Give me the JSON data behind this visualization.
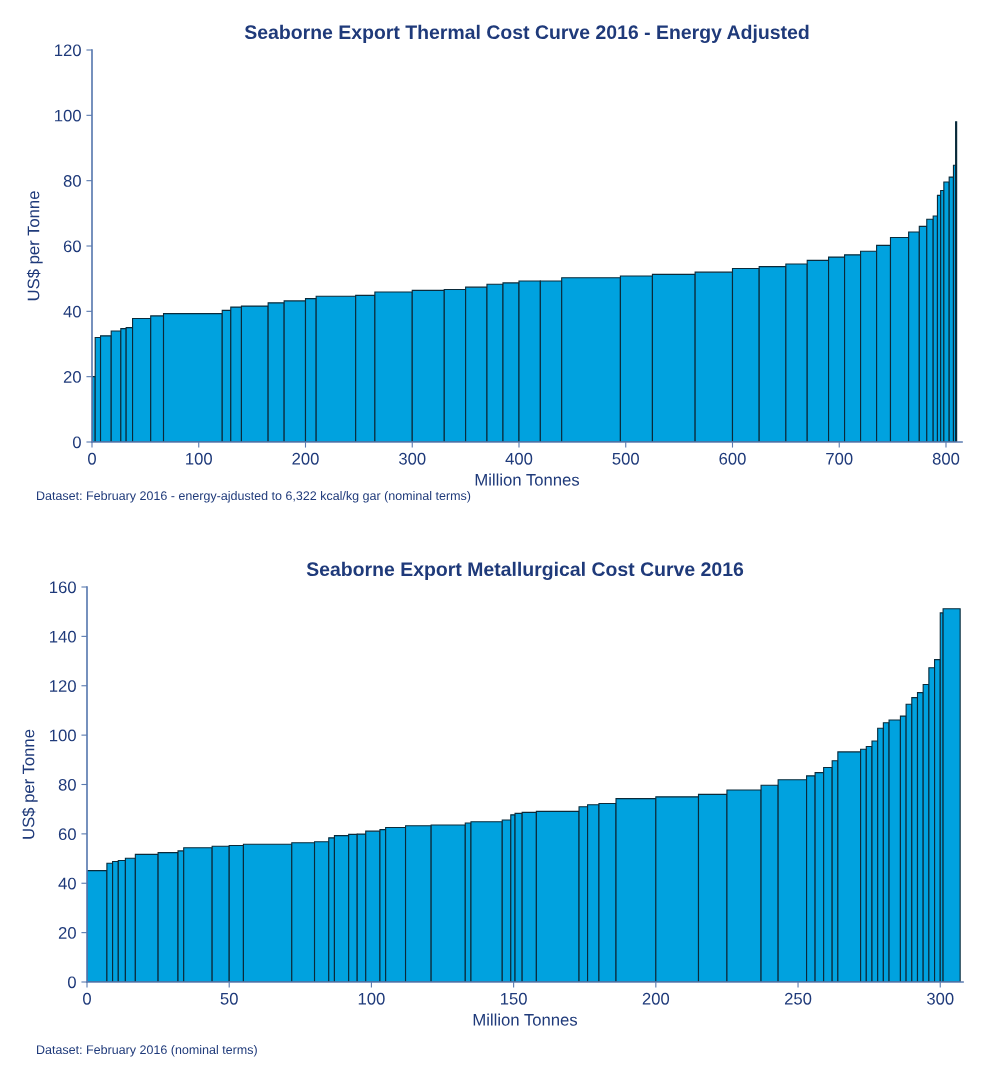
{
  "chart_data": [
    {
      "type": "histogram",
      "title": "Seaborne Export Thermal Cost Curve 2016 - Energy Adjusted",
      "xlabel": "Million Tonnes",
      "ylabel": "US$ per Tonne",
      "color": "#00a2df",
      "bins": [
        0,
        3,
        8,
        18,
        27,
        32,
        38,
        55,
        67,
        122,
        130,
        140,
        165,
        180,
        200,
        210,
        247,
        265,
        300,
        330,
        350,
        370,
        385,
        400,
        420,
        440,
        495,
        525,
        565,
        600,
        625,
        650,
        670,
        690,
        705,
        720,
        735,
        748,
        765,
        775,
        782,
        788,
        792,
        795,
        798,
        803,
        807,
        809,
        810
      ],
      "values": [
        20,
        32,
        32.5,
        34,
        34.7,
        35,
        37.8,
        38.6,
        39.3,
        40.3,
        41.3,
        41.6,
        42.6,
        43.2,
        43.9,
        44.6,
        44.9,
        45.9,
        46.4,
        46.7,
        47.4,
        48.3,
        48.7,
        49.3,
        49.3,
        50.3,
        50.8,
        51.3,
        52,
        53.1,
        53.7,
        54.5,
        55.6,
        56.6,
        57.3,
        58.4,
        60.2,
        62.6,
        64.3,
        66,
        68.2,
        69.2,
        75.5,
        77,
        79.6,
        81.1,
        84.7,
        98
      ],
      "xlim": [
        0,
        815
      ],
      "xticks": [
        0,
        100,
        200,
        300,
        400,
        500,
        600,
        700,
        800
      ],
      "ylim": [
        0,
        120
      ],
      "yticks": [
        0,
        20,
        40,
        60,
        80,
        100,
        120
      ],
      "annotations": [
        "Dataset: February 2016 - energy-ajdusted to 6,322 kcal/kg gar (nominal terms)"
      ]
    },
    {
      "type": "histogram",
      "title": "Seaborne Export Metallurgical Cost Curve 2016",
      "xlabel": "Million Tonnes",
      "ylabel": "US$ per Tonne",
      "color": "#00a2df",
      "bins": [
        0,
        7,
        9,
        11,
        13.5,
        17,
        25,
        32,
        34,
        44,
        50,
        55,
        72,
        80,
        85,
        87,
        92,
        95,
        98,
        103,
        105,
        112,
        121,
        133,
        135,
        146,
        149,
        150.5,
        153,
        158,
        173,
        176,
        180,
        186,
        200,
        215,
        225,
        237,
        243,
        253,
        256,
        259,
        262,
        264,
        272,
        274,
        276,
        278,
        280,
        282,
        286,
        288,
        290,
        292,
        294,
        296,
        298,
        300,
        301,
        307
      ],
      "values": [
        45.1,
        48.1,
        48.8,
        49.2,
        50.1,
        51.7,
        52.4,
        53.1,
        54.4,
        55,
        55.3,
        55.8,
        56.4,
        56.8,
        58.4,
        59.3,
        59.8,
        59.9,
        61.1,
        61.7,
        62.6,
        63.3,
        63.6,
        64.4,
        64.9,
        65.6,
        67.7,
        68.3,
        68.7,
        69.1,
        71,
        71.8,
        72.3,
        74.3,
        75,
        76,
        77.8,
        79.7,
        81.9,
        83.5,
        84.8,
        86.9,
        89.6,
        93.2,
        94.3,
        95.4,
        97.6,
        102.8,
        105,
        106.1,
        107.7,
        112.5,
        115.2,
        117.2,
        120.5,
        127.3,
        130.6,
        149.5,
        151.2
      ],
      "xlim": [
        0,
        308
      ],
      "xticks": [
        0,
        50,
        100,
        150,
        200,
        250,
        300
      ],
      "ylim": [
        0,
        160
      ],
      "yticks": [
        0,
        20,
        40,
        60,
        80,
        100,
        120,
        140,
        160
      ],
      "annotations": [
        "Dataset: February 2016 (nominal terms)"
      ]
    }
  ]
}
